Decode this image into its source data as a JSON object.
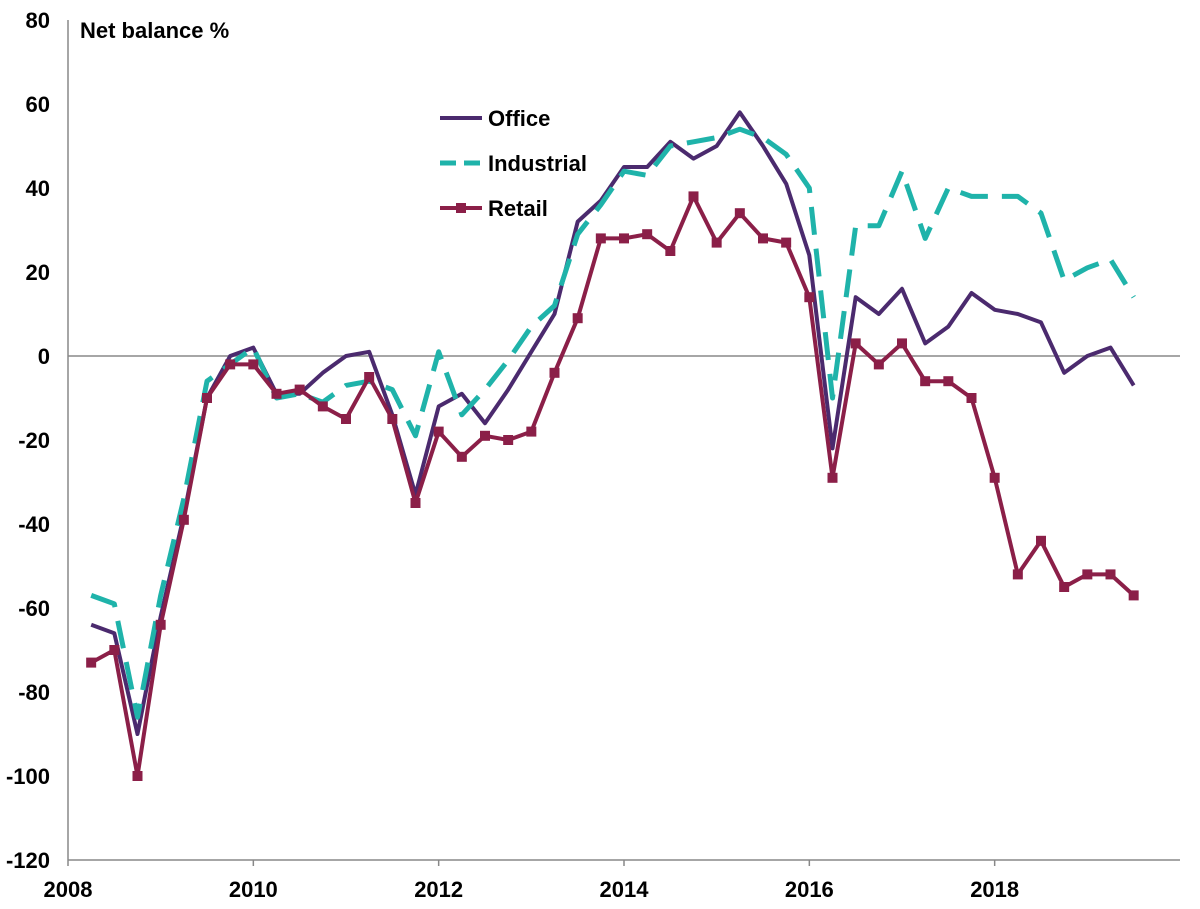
{
  "chart_data": {
    "type": "line",
    "title": "",
    "xlabel": "",
    "ylabel": "Net balance %",
    "x": [
      "2008-Q2",
      "2008-Q3",
      "2008-Q4",
      "2009-Q1",
      "2009-Q2",
      "2009-Q3",
      "2009-Q4",
      "2010-Q1",
      "2010-Q2",
      "2010-Q3",
      "2010-Q4",
      "2011-Q1",
      "2011-Q2",
      "2011-Q3",
      "2011-Q4",
      "2012-Q1",
      "2012-Q2",
      "2012-Q3",
      "2012-Q4",
      "2013-Q1",
      "2013-Q2",
      "2013-Q3",
      "2013-Q4",
      "2014-Q1",
      "2014-Q2",
      "2014-Q3",
      "2014-Q4",
      "2015-Q1",
      "2015-Q2",
      "2015-Q3",
      "2015-Q4",
      "2016-Q1",
      "2016-Q2",
      "2016-Q3",
      "2016-Q4",
      "2017-Q1",
      "2017-Q2",
      "2017-Q3",
      "2017-Q4",
      "2018-Q1",
      "2018-Q2",
      "2018-Q3",
      "2018-Q4",
      "2019-Q1",
      "2019-Q2",
      "2019-Q3"
    ],
    "xlim": [
      "2008-Q1",
      "2019-Q4"
    ],
    "ylim": [
      -120,
      80
    ],
    "x_ticks": [
      "2008",
      "2010",
      "2012",
      "2014",
      "2016",
      "2018"
    ],
    "y_ticks": [
      "80",
      "60",
      "40",
      "20",
      "0",
      "-20",
      "-40",
      "-60",
      "-80",
      "-100",
      "-120"
    ],
    "grid": false,
    "zero_line": true,
    "legend": "top-center",
    "series": [
      {
        "name": "Office",
        "color": "#4b2a6e",
        "style": "solid",
        "values": [
          -64,
          -66,
          -90,
          -62,
          -38,
          -10,
          0,
          2,
          -9,
          -9,
          -4,
          0,
          1,
          -14,
          -33,
          -12,
          -9,
          -16,
          -8,
          1,
          10,
          32,
          37,
          45,
          45,
          51,
          47,
          50,
          58,
          50,
          41,
          24,
          -22,
          14,
          10,
          16,
          3,
          7,
          15,
          11,
          10,
          8,
          -4,
          0,
          2,
          -7
        ]
      },
      {
        "name": "Industrial",
        "color": "#1fb3aa",
        "style": "dashed",
        "values": [
          -57,
          -59,
          -86,
          -57,
          -34,
          -6,
          -2,
          2,
          -10,
          -9,
          -11,
          -7,
          -6,
          -8,
          -19,
          1,
          -14,
          -8,
          -1,
          7,
          12,
          29,
          36,
          44,
          43,
          50,
          51,
          52,
          54,
          52,
          48,
          40,
          -10,
          31,
          31,
          44,
          28,
          40,
          38,
          38,
          38,
          34,
          18,
          21,
          23,
          14
        ]
      },
      {
        "name": "Retail",
        "color": "#8b1f48",
        "style": "solid-markers",
        "values": [
          -73,
          -70,
          -100,
          -64,
          -39,
          -10,
          -2,
          -2,
          -9,
          -8,
          -12,
          -15,
          -5,
          -15,
          -35,
          -18,
          -24,
          -19,
          -20,
          -18,
          -4,
          9,
          28,
          28,
          29,
          25,
          38,
          27,
          34,
          28,
          27,
          14,
          -29,
          3,
          -2,
          3,
          -6,
          -6,
          -10,
          -29,
          -52,
          -44,
          -55,
          -52,
          -52,
          -57
        ]
      }
    ]
  }
}
